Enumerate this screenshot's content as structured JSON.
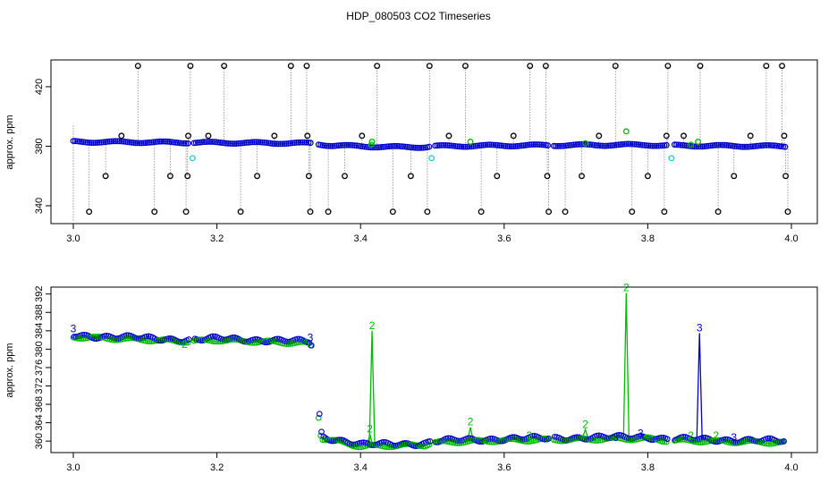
{
  "title": "HDP_080503  CO2 Timeseries",
  "colors": {
    "black": "#000000",
    "blue": "#0000cc",
    "green": "#00bb00",
    "cyan": "#22cccc",
    "spike": "#888888"
  },
  "chart_data": [
    {
      "type": "scatter",
      "ylabel": "approx. ppm",
      "xlim": [
        3.0,
        4.0
      ],
      "ylim": [
        328,
        438
      ],
      "x_ticks": [
        3.0,
        3.2,
        3.4,
        3.6,
        3.8,
        4.0
      ],
      "x_tick_labels": [
        "3.0",
        "3.2",
        "3.4",
        "3.6",
        "3.8",
        "4.0"
      ],
      "y_ticks": [
        340,
        380,
        420
      ],
      "y_tick_labels": [
        "340",
        "380",
        "420"
      ],
      "baseline": [
        [
          3.0,
          383
        ],
        [
          3.33,
          382
        ],
        [
          3.36,
          380.5
        ],
        [
          3.44,
          379.5
        ],
        [
          3.49,
          379.5
        ],
        [
          3.5,
          380
        ],
        [
          3.6,
          380.5
        ],
        [
          3.8,
          381
        ],
        [
          3.82,
          380.5
        ],
        [
          3.99,
          380
        ]
      ],
      "black_spikes": [
        {
          "x": 3.022,
          "y": 336
        },
        {
          "x": 3.045,
          "y": 360
        },
        {
          "x": 3.067,
          "y": 387
        },
        {
          "x": 3.09,
          "y": 434
        },
        {
          "x": 3.113,
          "y": 336
        },
        {
          "x": 3.135,
          "y": 360
        },
        {
          "x": 3.157,
          "y": 336
        },
        {
          "x": 3.159,
          "y": 360
        },
        {
          "x": 3.16,
          "y": 387
        },
        {
          "x": 3.163,
          "y": 434
        },
        {
          "x": 3.188,
          "y": 387
        },
        {
          "x": 3.21,
          "y": 434
        },
        {
          "x": 3.233,
          "y": 336
        },
        {
          "x": 3.256,
          "y": 360
        },
        {
          "x": 3.28,
          "y": 387
        },
        {
          "x": 3.303,
          "y": 434
        },
        {
          "x": 3.325,
          "y": 434
        },
        {
          "x": 3.326,
          "y": 387
        },
        {
          "x": 3.328,
          "y": 360
        },
        {
          "x": 3.33,
          "y": 336
        },
        {
          "x": 3.355,
          "y": 336
        },
        {
          "x": 3.378,
          "y": 360
        },
        {
          "x": 3.402,
          "y": 387
        },
        {
          "x": 3.423,
          "y": 434
        },
        {
          "x": 3.445,
          "y": 336
        },
        {
          "x": 3.47,
          "y": 360
        },
        {
          "x": 3.493,
          "y": 336
        },
        {
          "x": 3.496,
          "y": 434
        },
        {
          "x": 3.523,
          "y": 387
        },
        {
          "x": 3.546,
          "y": 434
        },
        {
          "x": 3.568,
          "y": 336
        },
        {
          "x": 3.59,
          "y": 360
        },
        {
          "x": 3.613,
          "y": 387
        },
        {
          "x": 3.636,
          "y": 434
        },
        {
          "x": 3.658,
          "y": 434
        },
        {
          "x": 3.66,
          "y": 360
        },
        {
          "x": 3.662,
          "y": 336
        },
        {
          "x": 3.685,
          "y": 336
        },
        {
          "x": 3.708,
          "y": 360
        },
        {
          "x": 3.732,
          "y": 387
        },
        {
          "x": 3.755,
          "y": 434
        },
        {
          "x": 3.778,
          "y": 336
        },
        {
          "x": 3.8,
          "y": 360
        },
        {
          "x": 3.823,
          "y": 336
        },
        {
          "x": 3.826,
          "y": 387
        },
        {
          "x": 3.828,
          "y": 434
        },
        {
          "x": 3.85,
          "y": 387
        },
        {
          "x": 3.873,
          "y": 434
        },
        {
          "x": 3.898,
          "y": 336
        },
        {
          "x": 3.92,
          "y": 360
        },
        {
          "x": 3.943,
          "y": 387
        },
        {
          "x": 3.965,
          "y": 434
        },
        {
          "x": 3.987,
          "y": 434
        },
        {
          "x": 3.99,
          "y": 387
        },
        {
          "x": 3.992,
          "y": 360
        },
        {
          "x": 3.995,
          "y": 336
        }
      ],
      "green_points": [
        {
          "x": 3.416,
          "y": 383
        },
        {
          "x": 3.415,
          "y": 381
        },
        {
          "x": 3.553,
          "y": 383
        },
        {
          "x": 3.713,
          "y": 382
        },
        {
          "x": 3.77,
          "y": 390
        },
        {
          "x": 3.86,
          "y": 381
        },
        {
          "x": 3.87,
          "y": 383
        }
      ],
      "cyan_points": [
        {
          "x": 3.166,
          "y": 372
        },
        {
          "x": 3.499,
          "y": 372
        },
        {
          "x": 3.833,
          "y": 372
        }
      ]
    },
    {
      "type": "scatter",
      "ylabel": "approx. ppm",
      "xlim": [
        3.0,
        4.0
      ],
      "ylim": [
        357.5,
        393.5
      ],
      "x_ticks": [
        3.0,
        3.2,
        3.4,
        3.6,
        3.8,
        4.0
      ],
      "x_tick_labels": [
        "3.0",
        "3.2",
        "3.4",
        "3.6",
        "3.8",
        "4.0"
      ],
      "y_ticks": [
        360,
        364,
        368,
        372,
        376,
        380,
        384,
        388,
        392
      ],
      "y_tick_labels": [
        "360",
        "364",
        "368",
        "372",
        "376",
        "380",
        "384",
        "388",
        "392"
      ],
      "baseline": [
        [
          3.0,
          383
        ],
        [
          3.16,
          382
        ],
        [
          3.2,
          382.3
        ],
        [
          3.33,
          381.6
        ],
        [
          3.345,
          361
        ],
        [
          3.4,
          359.2
        ],
        [
          3.49,
          359.5
        ],
        [
          3.5,
          360
        ],
        [
          3.6,
          360.5
        ],
        [
          3.8,
          360.9
        ],
        [
          3.82,
          360.5
        ],
        [
          3.99,
          360
        ]
      ],
      "peaks": [
        {
          "x": 3.416,
          "y": 384.0,
          "label": "2",
          "series": "green"
        },
        {
          "x": 3.413,
          "y": 361.5,
          "label": "2",
          "series": "green"
        },
        {
          "x": 3.553,
          "y": 363.0,
          "label": "2",
          "series": "green"
        },
        {
          "x": 3.713,
          "y": 362.5,
          "label": "2",
          "series": "green"
        },
        {
          "x": 3.77,
          "y": 392.2,
          "label": "2",
          "series": "green"
        },
        {
          "x": 3.872,
          "y": 383.5,
          "label": "3",
          "series": "blue"
        }
      ],
      "digit_labels": [
        {
          "x": 3.0,
          "y": 384.5,
          "label": "3",
          "series": "blue"
        },
        {
          "x": 3.155,
          "y": 381.0,
          "label": "2",
          "series": "green"
        },
        {
          "x": 3.33,
          "y": 382.5,
          "label": "3",
          "series": "blue"
        },
        {
          "x": 3.635,
          "y": 361.2,
          "label": "2",
          "series": "green"
        },
        {
          "x": 3.755,
          "y": 360.8,
          "label": "3",
          "series": "blue"
        },
        {
          "x": 3.79,
          "y": 361.7,
          "label": "3",
          "series": "blue"
        },
        {
          "x": 3.86,
          "y": 361.2,
          "label": "2",
          "series": "green"
        },
        {
          "x": 3.895,
          "y": 361.2,
          "label": "2",
          "series": "green"
        },
        {
          "x": 3.92,
          "y": 360.8,
          "label": "3",
          "series": "blue"
        }
      ]
    }
  ]
}
